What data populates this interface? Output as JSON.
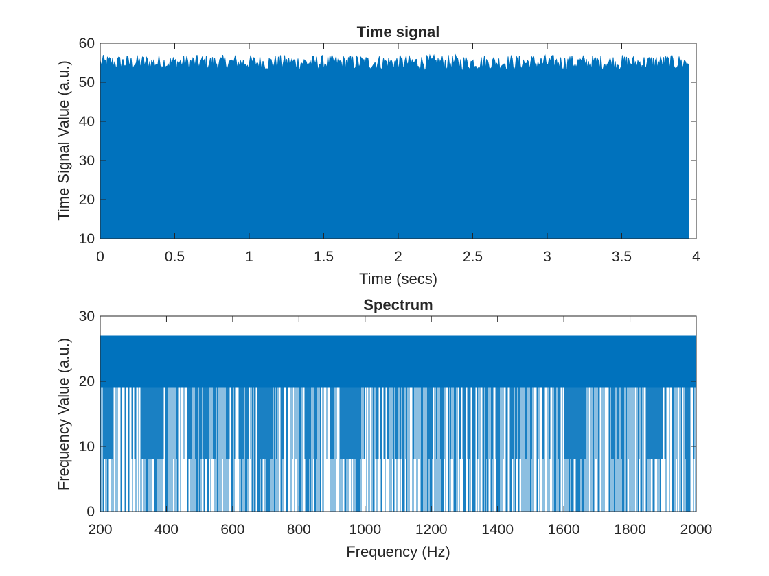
{
  "chart_data": [
    {
      "type": "line",
      "title": "Time signal",
      "xlabel": "Time (secs)",
      "ylabel": "Time Signal Value (a.u.)",
      "xlim": [
        0,
        4
      ],
      "ylim": [
        10,
        60
      ],
      "xticks": [
        "0",
        "0.5",
        "1",
        "1.5",
        "2",
        "2.5",
        "3",
        "3.5",
        "4"
      ],
      "yticks": [
        "10",
        "20",
        "30",
        "40",
        "50",
        "60"
      ],
      "grid": false,
      "color": "#0072BD",
      "series": [
        {
          "x_range": [
            0,
            3.95
          ],
          "y_min": 10,
          "y_max": 57,
          "typical_peak": [
            53,
            57
          ],
          "description": "dense oscillating signal filling the band between 10 and ~57"
        }
      ]
    },
    {
      "type": "line",
      "title": "Spectrum",
      "xlabel": "Frequency (Hz)",
      "ylabel": "Frequency Value (a.u.)",
      "xlim": [
        200,
        2000
      ],
      "ylim": [
        0,
        30
      ],
      "xticks": [
        "200",
        "400",
        "600",
        "800",
        "1000",
        "1200",
        "1400",
        "1600",
        "1800",
        "2000"
      ],
      "yticks": [
        "0",
        "10",
        "20",
        "30"
      ],
      "grid": false,
      "color": "#0072BD",
      "series": [
        {
          "x_range": [
            200,
            2000
          ],
          "levels": [
            0,
            8,
            19,
            27
          ],
          "solid_band": [
            19,
            27
          ],
          "gap_regions": [
            [
              210,
              240
            ],
            [
              340,
              390
            ],
            [
              680,
              720
            ],
            [
              930,
              990
            ],
            [
              1600,
              1650
            ],
            [
              1850,
              1900
            ]
          ],
          "description": "dense spectrum alternating among levels 0, 8, 19 and 27"
        }
      ]
    }
  ]
}
